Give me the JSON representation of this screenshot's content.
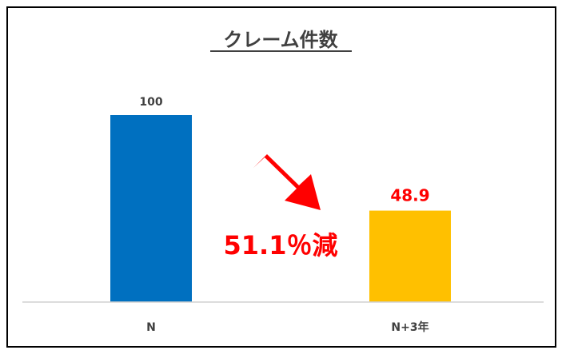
{
  "chart_data": {
    "type": "bar",
    "title": "クレーム件数",
    "categories": [
      "N",
      "N+3年"
    ],
    "values": [
      100,
      48.9
    ],
    "data_labels": [
      "100",
      "48.9"
    ],
    "bar_colors": [
      "#0070C0",
      "#FFC000"
    ],
    "data_label_colors": [
      "#404040",
      "#FF0000"
    ],
    "ylim": [
      0,
      100
    ],
    "grid": false,
    "legend": "none",
    "annotation": {
      "text": "51.1％減",
      "color": "#FF0000",
      "icon": "arrow-down-right-icon"
    }
  }
}
